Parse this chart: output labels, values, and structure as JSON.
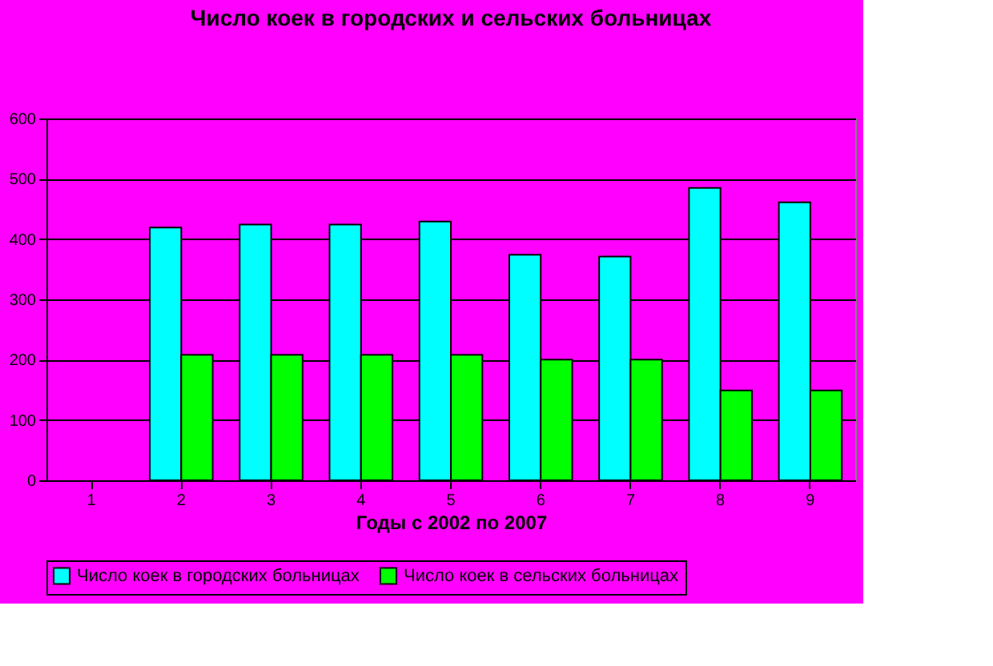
{
  "chart_data": {
    "type": "bar",
    "title": "Число коек в городских и сельских больницах",
    "xlabel": "Годы с 2002 по 2007",
    "categories": [
      "1",
      "2",
      "3",
      "4",
      "5",
      "6",
      "7",
      "8",
      "9"
    ],
    "series": [
      {
        "name": "Число коек в городских больницах",
        "color": "#00ffff",
        "values": [
          null,
          419,
          424,
          424,
          429,
          374,
          371,
          485,
          461
        ]
      },
      {
        "name": "Число коек в сельских больницах",
        "color": "#00ff00",
        "values": [
          null,
          208,
          208,
          208,
          208,
          200,
          200,
          149,
          149
        ]
      }
    ],
    "ylim": [
      0,
      600
    ],
    "yticks": [
      0,
      100,
      200,
      300,
      400,
      500,
      600
    ],
    "grid": "y",
    "legend": "bottom"
  }
}
